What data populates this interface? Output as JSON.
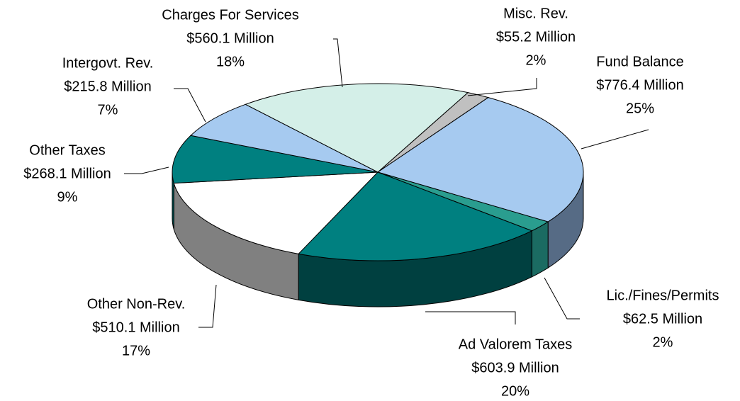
{
  "chart_data": {
    "type": "pie",
    "categories": [
      "Misc. Rev.",
      "Fund Balance",
      "Lic./Fines/Permits",
      "Ad Valorem Taxes",
      "Other Non-Rev.",
      "Other Taxes",
      "Intergovt. Rev.",
      "Charges For Services"
    ],
    "values": [
      55.2,
      776.4,
      62.5,
      603.9,
      510.1,
      268.1,
      215.8,
      560.1
    ],
    "value_labels": [
      "$55.2 Million",
      "$776.4 Million",
      "$62.5 Million",
      "$603.9 Million",
      "$510.1 Million",
      "$268.1 Million",
      "$215.8 Million",
      "$560.1 Million"
    ],
    "shares": [
      2,
      25,
      2,
      20,
      17,
      9,
      7,
      18
    ],
    "share_labels": [
      "2%",
      "25%",
      "2%",
      "20%",
      "17%",
      "9%",
      "7%",
      "18%"
    ],
    "colors": [
      "#c0c0c0",
      "#a6caf0",
      "#2a9d8f",
      "#008080",
      "#ffffff",
      "#008080",
      "#a6caf0",
      "#d4efe8"
    ],
    "side_colors": [
      "#808080",
      "#566b85",
      "#1b6b62",
      "#004040",
      "#808080",
      "#005a5a",
      "#566b85",
      "#8aa8a0"
    ]
  }
}
